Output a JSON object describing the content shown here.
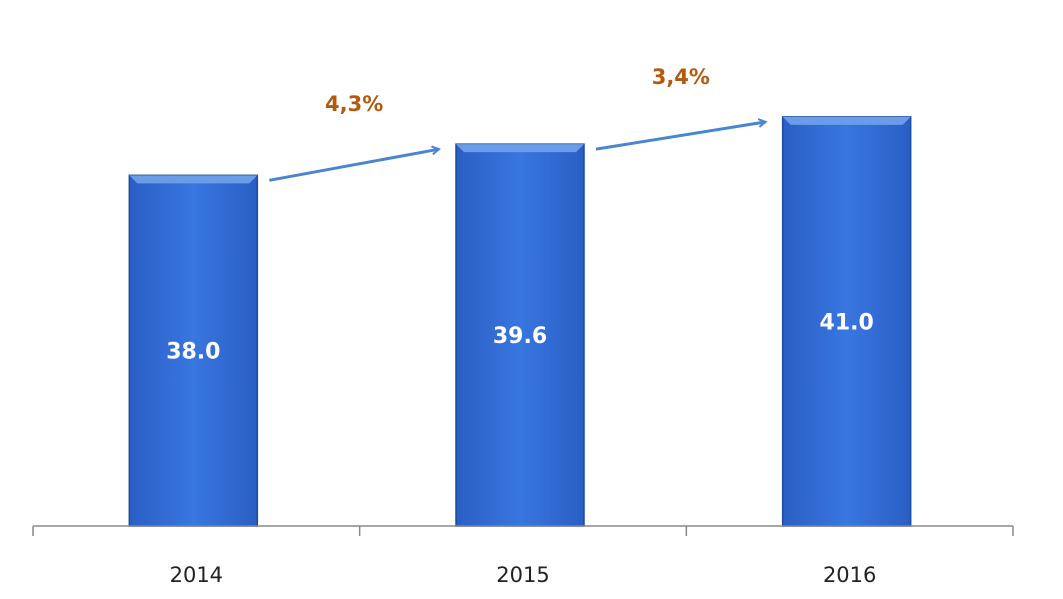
{
  "chart_data": {
    "type": "bar",
    "categories": [
      "2014",
      "2015",
      "2016"
    ],
    "values": [
      38.0,
      39.6,
      41.0
    ],
    "value_labels": [
      "38.0",
      "39.6",
      "41.0"
    ],
    "title": "",
    "xlabel": "",
    "ylabel": "",
    "ylim": [
      20,
      47
    ],
    "grid": false,
    "legend": "none",
    "annotations": [
      {
        "from": "2014",
        "to": "2015",
        "label": "4,3%"
      },
      {
        "from": "2015",
        "to": "2016",
        "label": "3,4%"
      }
    ],
    "colors": {
      "bar": "#2f6bd6",
      "bar_edge": "#1b4a9e",
      "bar_top": "#6a9ce8",
      "arrow": "#4a86d0",
      "annotation_text": "#b35a0f",
      "axis": "#888888"
    }
  }
}
